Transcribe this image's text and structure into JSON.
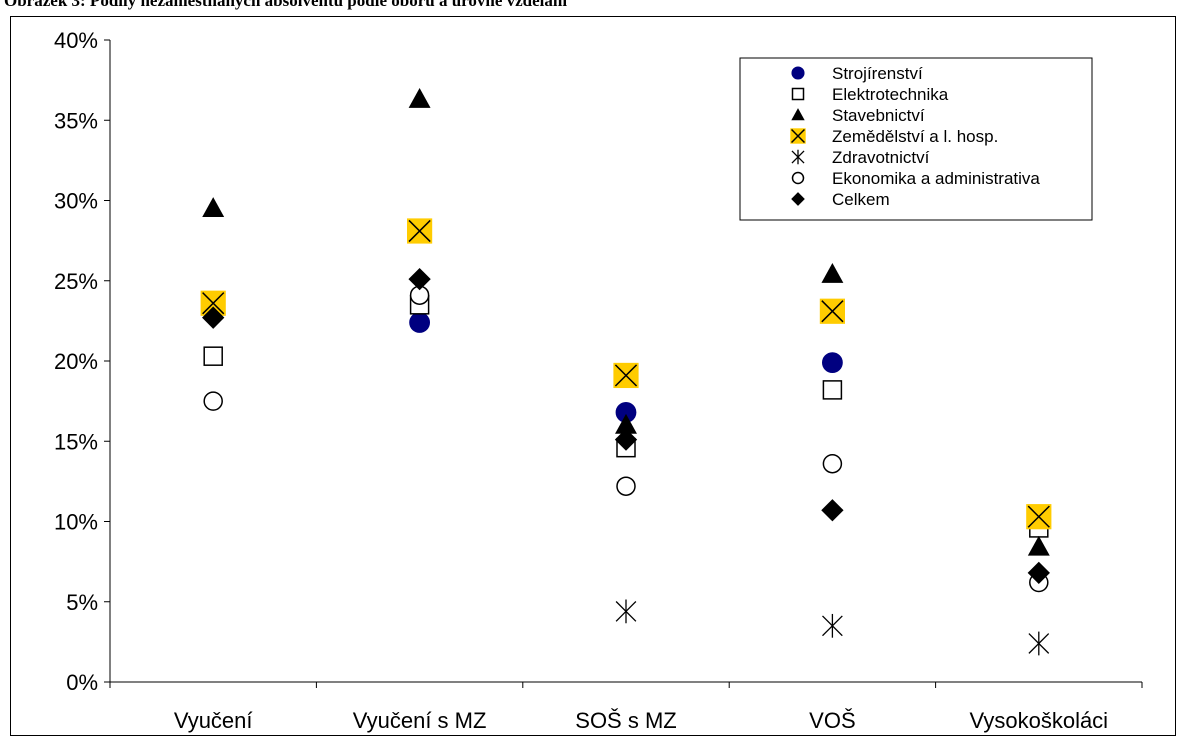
{
  "title_text": "Obrázek 3: Podíly nezaměstnaných absolventů podle oboru a úrovně vzdělání",
  "chart_data": {
    "type": "scatter",
    "categories": [
      "Vyučení",
      "Vyučení s MZ",
      "SOŠ s MZ",
      "VOŠ",
      "Vysokoškoláci"
    ],
    "ylim": [
      0,
      40
    ],
    "yticks": [
      "0%",
      "5%",
      "10%",
      "15%",
      "20%",
      "25%",
      "30%",
      "35%",
      "40%"
    ],
    "legend_position": "top-right",
    "grid": false,
    "series": [
      {
        "name": "Strojírenství",
        "marker": "circle-filled",
        "color": "#000080",
        "values": [
          null,
          22.4,
          16.8,
          19.9,
          null
        ]
      },
      {
        "name": "Elektrotechnika",
        "marker": "square-open",
        "color": "#000000",
        "values": [
          20.3,
          23.5,
          14.6,
          18.2,
          9.6
        ]
      },
      {
        "name": "Stavebnictví",
        "marker": "triangle-filled",
        "color": "#000000",
        "values": [
          29.5,
          36.3,
          16.0,
          25.4,
          8.4
        ]
      },
      {
        "name": "Zemědělství a l. hosp.",
        "marker": "x-yellow-box",
        "color": "#FFCC00",
        "values": [
          23.6,
          28.1,
          19.1,
          23.1,
          10.3
        ]
      },
      {
        "name": "Zdravotnictví",
        "marker": "asterisk",
        "color": "#000000",
        "values": [
          null,
          null,
          4.4,
          3.5,
          2.4
        ]
      },
      {
        "name": "Ekonomika a administrativa",
        "marker": "circle-open",
        "color": "#000000",
        "values": [
          17.5,
          24.1,
          12.2,
          13.6,
          6.2
        ]
      },
      {
        "name": "Celkem",
        "marker": "diamond-filled",
        "color": "#000000",
        "values": [
          22.7,
          25.1,
          15.1,
          10.7,
          6.8
        ]
      }
    ]
  }
}
